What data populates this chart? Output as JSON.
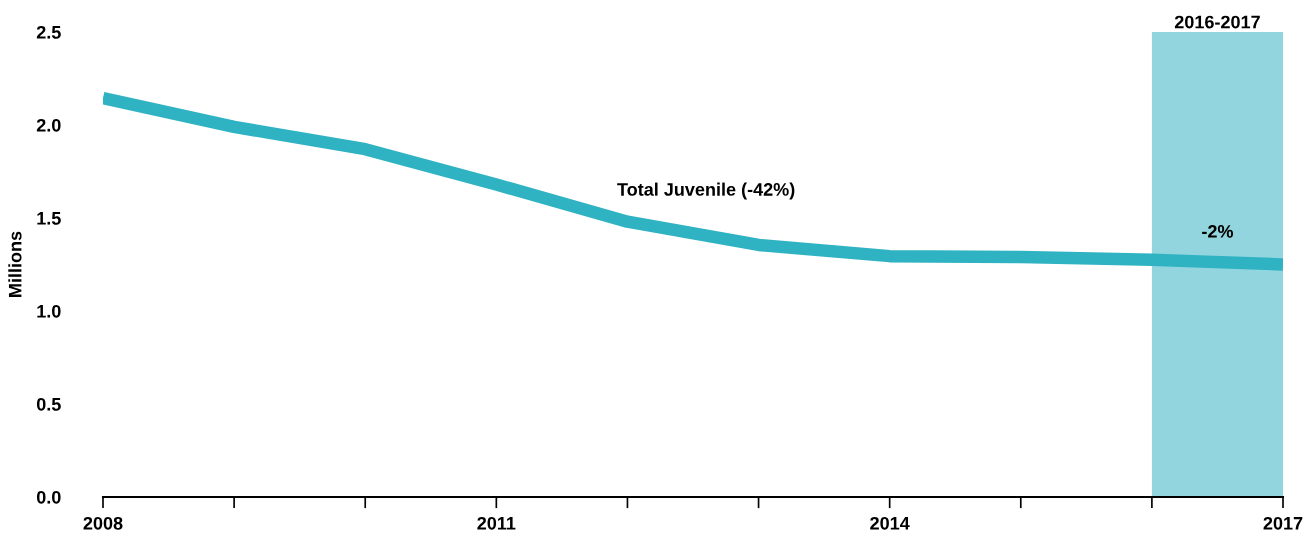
{
  "chart_data": {
    "type": "line",
    "ylabel": "Millions",
    "x": [
      2008,
      2009,
      2010,
      2011,
      2012,
      2013,
      2014,
      2015,
      2016,
      2017
    ],
    "series": [
      {
        "name": "Total Juvenile (-42%)",
        "color": "#2fb3c3",
        "values": [
          2.145,
          1.99,
          1.87,
          1.68,
          1.48,
          1.355,
          1.295,
          1.29,
          1.275,
          1.25
        ]
      }
    ],
    "xlim": [
      2008,
      2017
    ],
    "xticks": [
      2008,
      {
        "value": 2009,
        "label": null
      },
      {
        "value": 2010,
        "label": null
      },
      2011,
      {
        "value": 2012,
        "label": null
      },
      {
        "value": 2013,
        "label": null
      },
      2014,
      {
        "value": 2015,
        "label": null
      },
      {
        "value": 2016,
        "label": null
      },
      2017
    ],
    "ylim": [
      0,
      2.5
    ],
    "yticks": [
      {
        "value": 0,
        "label": "0.0"
      },
      0.5,
      {
        "value": 1,
        "label": "1.0"
      },
      1.5,
      {
        "value": 2,
        "label": "2.0"
      },
      2.5
    ],
    "bands": [
      {
        "axis": "x",
        "from": 2016,
        "to": 2017,
        "label": "2016-2017",
        "color": "#92d5de"
      }
    ],
    "annotations": [
      {
        "text": "-2%",
        "x": 2016.5,
        "y": 1.27
      }
    ],
    "grid": false,
    "legend": false,
    "marker": "none",
    "line_style": "solid"
  }
}
